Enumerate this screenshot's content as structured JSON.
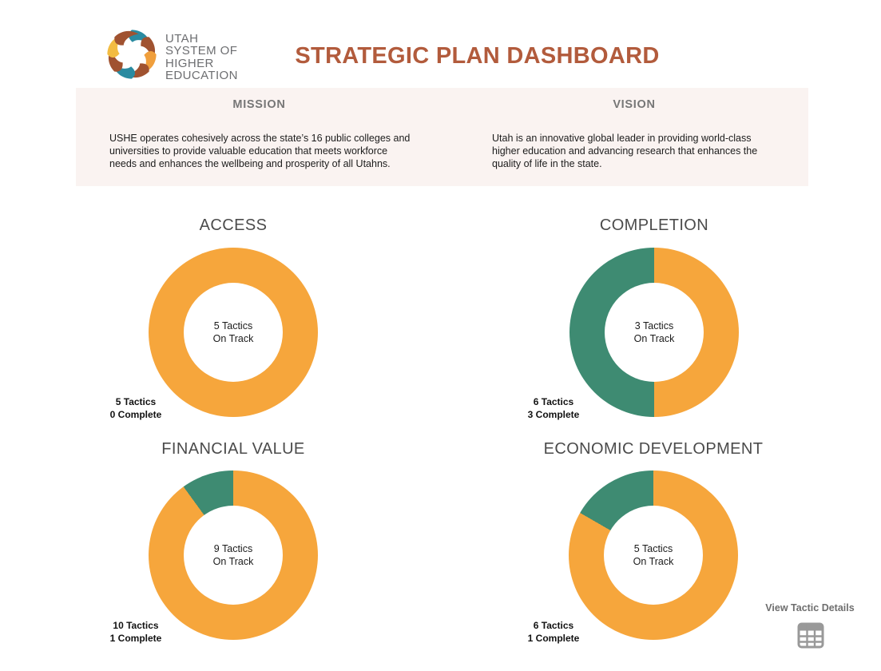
{
  "header": {
    "logo_lines": [
      "UTAH",
      "SYSTEM OF",
      "HIGHER",
      "EDUCATION"
    ],
    "title": "STRATEGIC PLAN DASHBOARD"
  },
  "mission": {
    "heading": "MISSION",
    "body": "USHE operates cohesively across the state’s 16 public colleges and universities to provide valuable education that meets workforce needs and enhances the wellbeing and prosperity of all Utahns."
  },
  "vision": {
    "heading": "VISION",
    "body": "Utah is an innovative global leader in providing world-class higher education and advancing research that enhances the quality of life in the state."
  },
  "chart_data": [
    {
      "type": "pie",
      "variant": "donut",
      "title": "ACCESS",
      "slices": [
        {
          "label": "On Track",
          "value": 5,
          "color": "#F6A63C"
        },
        {
          "label": "Complete",
          "value": 0,
          "color": "#3E8B72"
        }
      ],
      "center_line1": "5 Tactics",
      "center_line2": "On Track",
      "label_line1": "5 Tactics",
      "label_line2": "0 Complete"
    },
    {
      "type": "pie",
      "variant": "donut",
      "title": "COMPLETION",
      "slices": [
        {
          "label": "On Track",
          "value": 3,
          "color": "#F6A63C"
        },
        {
          "label": "Complete",
          "value": 3,
          "color": "#3E8B72"
        }
      ],
      "center_line1": "3 Tactics",
      "center_line2": "On Track",
      "label_line1": "6 Tactics",
      "label_line2": "3 Complete"
    },
    {
      "type": "pie",
      "variant": "donut",
      "title": "FINANCIAL VALUE",
      "slices": [
        {
          "label": "On Track",
          "value": 9,
          "color": "#F6A63C"
        },
        {
          "label": "Complete",
          "value": 1,
          "color": "#3E8B72"
        }
      ],
      "center_line1": "9 Tactics",
      "center_line2": "On Track",
      "label_line1": "10 Tactics",
      "label_line2": "1 Complete"
    },
    {
      "type": "pie",
      "variant": "donut",
      "title": "ECONOMIC DEVELOPMENT",
      "slices": [
        {
          "label": "On Track",
          "value": 5,
          "color": "#F6A63C"
        },
        {
          "label": "Complete",
          "value": 1,
          "color": "#3E8B72"
        }
      ],
      "center_line1": "5 Tactics",
      "center_line2": "On Track",
      "label_line1": "6 Tactics",
      "label_line2": "1 Complete"
    }
  ],
  "footer": {
    "view_details_label": "View Tactic Details",
    "icon": "table-grid-icon"
  },
  "colors": {
    "on_track_orange": "#F6A63C",
    "complete_green": "#3E8B72",
    "title_terracotta": "#B25B3C",
    "band_background": "#FAF3F1",
    "heading_gray": "#767676",
    "logo_teal": "#2A8BA1",
    "logo_rust": "#A05230",
    "logo_orange": "#F09F3C",
    "logo_yellow": "#F3BC42"
  }
}
